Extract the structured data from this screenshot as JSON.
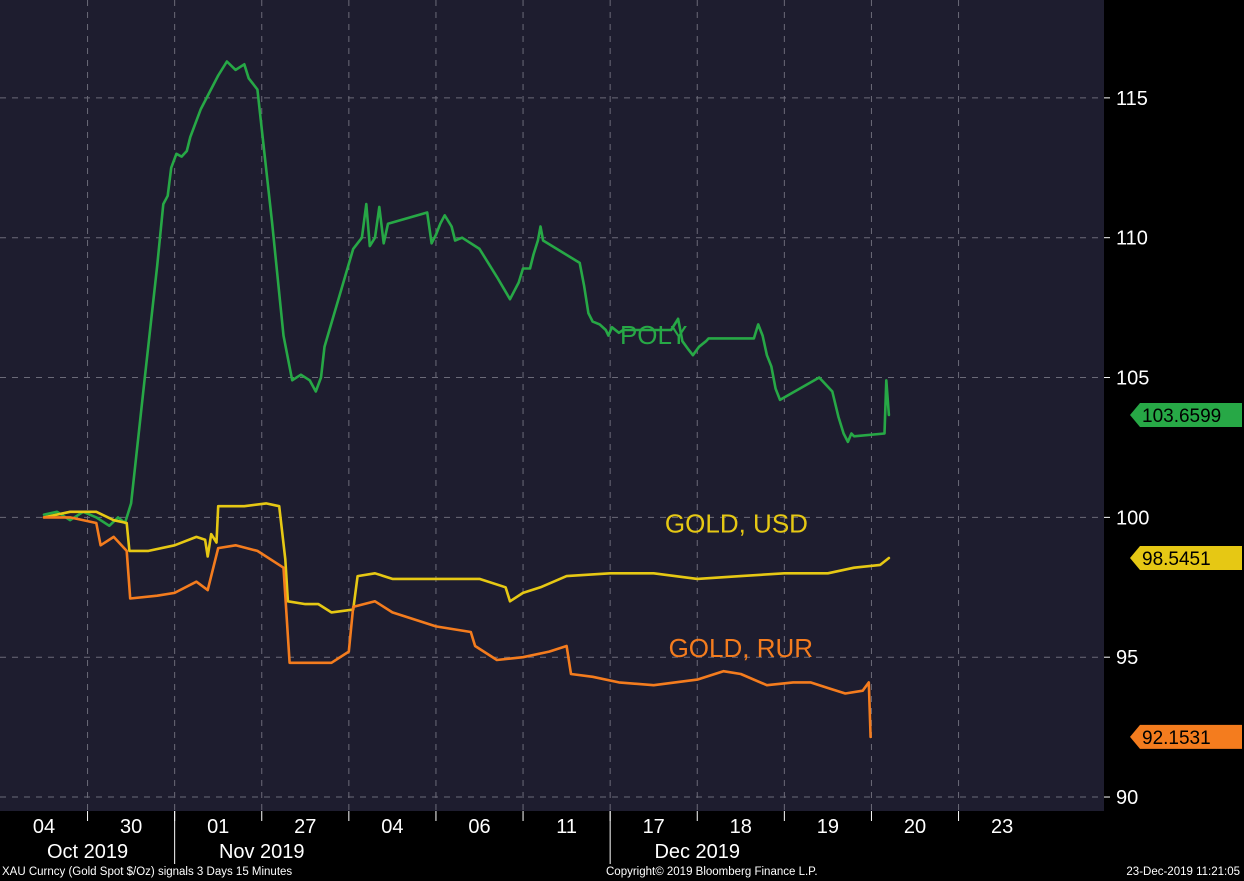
{
  "chart_data": {
    "type": "line",
    "y_ticks": [
      "115",
      "110",
      "105",
      "100",
      "95",
      "90"
    ],
    "y_tick_values": [
      115,
      110,
      105,
      100,
      95,
      90
    ],
    "ylim": [
      89.5,
      118.5
    ],
    "grid": true,
    "x_ticks": [
      "04",
      "30",
      "01",
      "27",
      "04",
      "06",
      "11",
      "17",
      "18",
      "19",
      "20",
      "23"
    ],
    "x_groups": [
      {
        "label": "Oct 2019",
        "center_tick": 0.5
      },
      {
        "label": "Nov 2019",
        "center_tick": 2.5
      },
      {
        "label": "Dec 2019",
        "center_tick": 7.5
      }
    ],
    "series": [
      {
        "name": "POLY",
        "color": "#27a846",
        "last_value": "103.6599",
        "points": [
          [
            0,
            100.1
          ],
          [
            0.15,
            100.2
          ],
          [
            0.3,
            99.9
          ],
          [
            0.45,
            100.2
          ],
          [
            0.6,
            100.0
          ],
          [
            0.75,
            99.7
          ],
          [
            0.85,
            100.0
          ],
          [
            0.93,
            99.8
          ],
          [
            1.0,
            100.5
          ],
          [
            1.15,
            104.8
          ],
          [
            1.3,
            109.0
          ],
          [
            1.37,
            111.2
          ],
          [
            1.42,
            111.5
          ],
          [
            1.46,
            112.5
          ],
          [
            1.52,
            113.0
          ],
          [
            1.58,
            112.9
          ],
          [
            1.64,
            113.1
          ],
          [
            1.68,
            113.6
          ],
          [
            1.8,
            114.6
          ],
          [
            2.0,
            115.8
          ],
          [
            2.1,
            116.3
          ],
          [
            2.2,
            116.0
          ],
          [
            2.3,
            116.2
          ],
          [
            2.35,
            115.7
          ],
          [
            2.45,
            115.3
          ],
          [
            2.62,
            110.5
          ],
          [
            2.75,
            106.5
          ],
          [
            2.85,
            104.9
          ],
          [
            2.95,
            105.1
          ],
          [
            3.05,
            104.9
          ],
          [
            3.12,
            104.5
          ],
          [
            3.18,
            105.0
          ],
          [
            3.22,
            106.1
          ],
          [
            3.4,
            108.0
          ],
          [
            3.55,
            109.6
          ],
          [
            3.65,
            110.0
          ],
          [
            3.7,
            111.2
          ],
          [
            3.74,
            109.7
          ],
          [
            3.8,
            110.0
          ],
          [
            3.85,
            111.1
          ],
          [
            3.9,
            109.8
          ],
          [
            3.95,
            110.5
          ],
          [
            4.4,
            110.9
          ],
          [
            4.45,
            109.8
          ],
          [
            4.5,
            110.1
          ],
          [
            4.55,
            110.5
          ],
          [
            4.6,
            110.8
          ],
          [
            4.68,
            110.4
          ],
          [
            4.72,
            109.9
          ],
          [
            4.8,
            110.0
          ],
          [
            5.0,
            109.6
          ],
          [
            5.2,
            108.6
          ],
          [
            5.35,
            107.8
          ],
          [
            5.45,
            108.4
          ],
          [
            5.5,
            108.9
          ],
          [
            5.58,
            108.9
          ],
          [
            5.62,
            109.4
          ],
          [
            5.67,
            109.9
          ],
          [
            5.7,
            110.4
          ],
          [
            5.73,
            109.9
          ],
          [
            6.15,
            109.1
          ],
          [
            6.2,
            108.3
          ],
          [
            6.25,
            107.3
          ],
          [
            6.3,
            107.0
          ],
          [
            6.38,
            106.9
          ],
          [
            6.45,
            106.7
          ],
          [
            6.48,
            106.5
          ],
          [
            6.52,
            106.8
          ],
          [
            6.6,
            106.6
          ],
          [
            6.65,
            106.7
          ],
          [
            6.7,
            106.7
          ],
          [
            7.2,
            106.7
          ],
          [
            7.28,
            107.1
          ],
          [
            7.33,
            106.3
          ],
          [
            7.4,
            106.0
          ],
          [
            7.45,
            105.8
          ],
          [
            7.52,
            106.1
          ],
          [
            7.6,
            106.3
          ],
          [
            7.63,
            106.4
          ],
          [
            8.15,
            106.4
          ],
          [
            8.2,
            106.9
          ],
          [
            8.25,
            106.5
          ],
          [
            8.3,
            105.8
          ],
          [
            8.35,
            105.4
          ],
          [
            8.4,
            104.6
          ],
          [
            8.45,
            104.2
          ],
          [
            8.9,
            105.0
          ],
          [
            9.05,
            104.5
          ],
          [
            9.12,
            103.6
          ],
          [
            9.18,
            103.0
          ],
          [
            9.23,
            102.7
          ],
          [
            9.27,
            103.0
          ],
          [
            9.3,
            102.9
          ],
          [
            9.65,
            103.0
          ],
          [
            9.67,
            104.9
          ],
          [
            9.7,
            103.66
          ]
        ]
      },
      {
        "name": "GOLD, USD",
        "color": "#e6c814",
        "last_value": "98.5451",
        "points": [
          [
            0,
            100.0
          ],
          [
            0.3,
            100.2
          ],
          [
            0.6,
            100.2
          ],
          [
            0.8,
            99.9
          ],
          [
            0.95,
            99.8
          ],
          [
            0.98,
            98.8
          ],
          [
            1.2,
            98.8
          ],
          [
            1.5,
            99.0
          ],
          [
            1.75,
            99.3
          ],
          [
            1.85,
            99.2
          ],
          [
            1.88,
            98.6
          ],
          [
            1.92,
            99.4
          ],
          [
            1.98,
            99.1
          ],
          [
            2.0,
            100.4
          ],
          [
            2.3,
            100.4
          ],
          [
            2.55,
            100.5
          ],
          [
            2.7,
            100.4
          ],
          [
            2.77,
            98.5
          ],
          [
            2.8,
            97.0
          ],
          [
            3.0,
            96.9
          ],
          [
            3.15,
            96.9
          ],
          [
            3.3,
            96.6
          ],
          [
            3.55,
            96.7
          ],
          [
            3.6,
            97.9
          ],
          [
            3.8,
            98.0
          ],
          [
            4.0,
            97.8
          ],
          [
            4.5,
            97.8
          ],
          [
            5.0,
            97.8
          ],
          [
            5.3,
            97.5
          ],
          [
            5.35,
            97.0
          ],
          [
            5.5,
            97.3
          ],
          [
            5.7,
            97.5
          ],
          [
            6.0,
            97.9
          ],
          [
            6.5,
            98.0
          ],
          [
            7.0,
            98.0
          ],
          [
            7.5,
            97.8
          ],
          [
            8.0,
            97.9
          ],
          [
            8.5,
            98.0
          ],
          [
            9.0,
            98.0
          ],
          [
            9.3,
            98.2
          ],
          [
            9.6,
            98.3
          ],
          [
            9.7,
            98.5451
          ]
        ]
      },
      {
        "name": "GOLD, RUR",
        "color": "#f47c1e",
        "last_value": "92.1531",
        "points": [
          [
            0,
            100.0
          ],
          [
            0.3,
            100.0
          ],
          [
            0.6,
            99.8
          ],
          [
            0.65,
            99.0
          ],
          [
            0.8,
            99.3
          ],
          [
            0.95,
            98.8
          ],
          [
            0.99,
            97.1
          ],
          [
            1.3,
            97.2
          ],
          [
            1.5,
            97.3
          ],
          [
            1.75,
            97.7
          ],
          [
            1.88,
            97.4
          ],
          [
            2.0,
            98.9
          ],
          [
            2.2,
            99.0
          ],
          [
            2.45,
            98.8
          ],
          [
            2.75,
            98.2
          ],
          [
            2.82,
            94.8
          ],
          [
            3.0,
            94.8
          ],
          [
            3.3,
            94.8
          ],
          [
            3.5,
            95.2
          ],
          [
            3.55,
            96.8
          ],
          [
            3.8,
            97.0
          ],
          [
            4.0,
            96.6
          ],
          [
            4.5,
            96.1
          ],
          [
            4.9,
            95.9
          ],
          [
            4.95,
            95.4
          ],
          [
            5.2,
            94.9
          ],
          [
            5.5,
            95.0
          ],
          [
            5.8,
            95.2
          ],
          [
            6.0,
            95.4
          ],
          [
            6.05,
            94.4
          ],
          [
            6.3,
            94.3
          ],
          [
            6.6,
            94.1
          ],
          [
            7.0,
            94.0
          ],
          [
            7.5,
            94.2
          ],
          [
            7.8,
            94.5
          ],
          [
            8.0,
            94.4
          ],
          [
            8.3,
            94.0
          ],
          [
            8.6,
            94.1
          ],
          [
            8.8,
            94.1
          ],
          [
            9.0,
            93.9
          ],
          [
            9.2,
            93.7
          ],
          [
            9.4,
            93.8
          ],
          [
            9.47,
            94.1
          ],
          [
            9.49,
            92.15
          ]
        ]
      }
    ]
  },
  "footer": {
    "left": "XAU Curncy (Gold Spot   $/Oz) signals 3 Days 15 Minutes",
    "center": "Copyright© 2019 Bloomberg Finance L.P.",
    "right": "23-Dec-2019 11:21:05"
  },
  "colors": {
    "plot_background": "#1e1d2f",
    "axis_background": "#000000",
    "grid": "#6b6a78"
  }
}
